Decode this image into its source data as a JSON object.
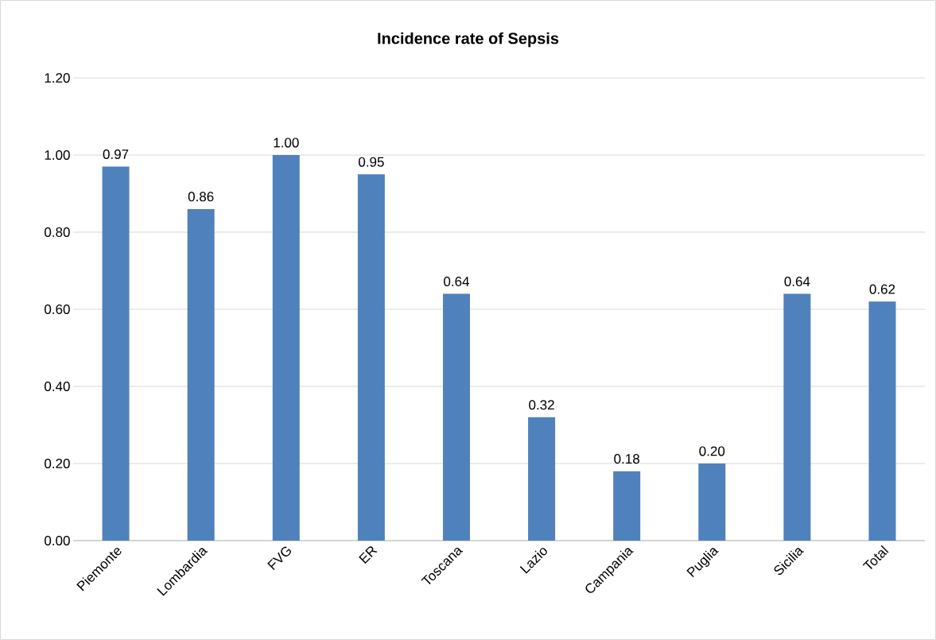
{
  "chart_data": {
    "type": "bar",
    "title": "Incidence rate of Sepsis",
    "categories": [
      "Piemonte",
      "Lombardia",
      "FVG",
      "ER",
      "Toscana",
      "Lazio",
      "Campania",
      "Puglia",
      "Sicilia",
      "Total"
    ],
    "values": [
      0.97,
      0.86,
      1.0,
      0.95,
      0.64,
      0.32,
      0.18,
      0.2,
      0.64,
      0.62
    ],
    "value_labels": [
      "0.97",
      "0.86",
      "1.00",
      "0.95",
      "0.64",
      "0.32",
      "0.18",
      "0.20",
      "0.64",
      "0.62"
    ],
    "color": "#4f81bd",
    "ylim": [
      0,
      1.2
    ],
    "yticks": [
      {
        "value": 0,
        "label": "0.00"
      },
      {
        "value": 0.2,
        "label": "0.20"
      },
      {
        "value": 0.4,
        "label": "0.40"
      },
      {
        "value": 0.6,
        "label": "0.60"
      },
      {
        "value": 0.8,
        "label": "0.80"
      },
      {
        "value": 1.0,
        "label": "1.00"
      },
      {
        "value": 1.2,
        "label": "1.20"
      }
    ],
    "grid": "y"
  }
}
